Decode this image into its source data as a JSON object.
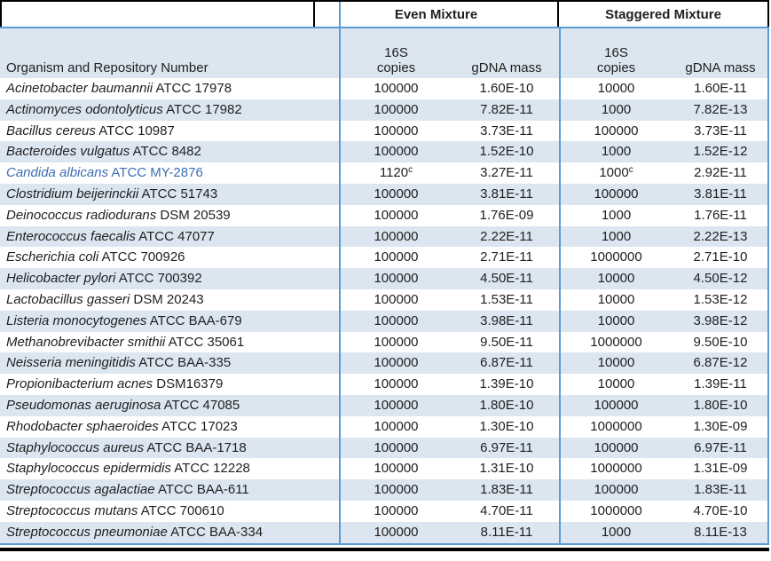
{
  "table": {
    "column_groups": [
      {
        "label": "Even Mixture"
      },
      {
        "label": "Staggered Mixture"
      }
    ],
    "org_header": "Organism and Repository Number",
    "subheaders": {
      "copies_line1": "16S",
      "copies_line2": "copies",
      "mass": "gDNA mass"
    },
    "colors": {
      "stripe": "#dce6f1",
      "blue_line": "#5b9bd5",
      "highlight_text": "#3d6eb5",
      "text": "#1f1f1f",
      "black": "#000000"
    },
    "rows": [
      {
        "organism": "Acinetobacter baumannii",
        "repository": "ATCC 17978",
        "even_copies": "100000",
        "even_copies_sup": "",
        "even_mass": "1.60E-10",
        "stag_copies": "10000",
        "stag_copies_sup": "",
        "stag_mass": "1.60E-11",
        "highlight": false
      },
      {
        "organism": "Actinomyces odontolyticus",
        "repository": "ATCC 17982",
        "even_copies": "100000",
        "even_copies_sup": "",
        "even_mass": "7.82E-11",
        "stag_copies": "1000",
        "stag_copies_sup": "",
        "stag_mass": "7.82E-13",
        "highlight": false
      },
      {
        "organism": "Bacillus cereus",
        "repository": "ATCC 10987",
        "even_copies": "100000",
        "even_copies_sup": "",
        "even_mass": "3.73E-11",
        "stag_copies": "100000",
        "stag_copies_sup": "",
        "stag_mass": "3.73E-11",
        "highlight": false
      },
      {
        "organism": "Bacteroides vulgatus",
        "repository": "ATCC 8482",
        "even_copies": "100000",
        "even_copies_sup": "",
        "even_mass": "1.52E-10",
        "stag_copies": "1000",
        "stag_copies_sup": "",
        "stag_mass": "1.52E-12",
        "highlight": false
      },
      {
        "organism": "Candida albicans",
        "repository": "ATCC MY-2876",
        "even_copies": "1120",
        "even_copies_sup": "c",
        "even_mass": "3.27E-11",
        "stag_copies": "1000",
        "stag_copies_sup": "c",
        "stag_mass": "2.92E-11",
        "highlight": true
      },
      {
        "organism": "Clostridium beijerinckii",
        "repository": "ATCC 51743",
        "even_copies": "100000",
        "even_copies_sup": "",
        "even_mass": "3.81E-11",
        "stag_copies": "100000",
        "stag_copies_sup": "",
        "stag_mass": "3.81E-11",
        "highlight": false
      },
      {
        "organism": "Deinococcus radiodurans",
        "repository": "DSM 20539",
        "even_copies": "100000",
        "even_copies_sup": "",
        "even_mass": "1.76E-09",
        "stag_copies": "1000",
        "stag_copies_sup": "",
        "stag_mass": "1.76E-11",
        "highlight": false
      },
      {
        "organism": "Enterococcus faecalis",
        "repository": "ATCC 47077",
        "even_copies": "100000",
        "even_copies_sup": "",
        "even_mass": "2.22E-11",
        "stag_copies": "1000",
        "stag_copies_sup": "",
        "stag_mass": "2.22E-13",
        "highlight": false
      },
      {
        "organism": "Escherichia coli",
        "repository": "ATCC 700926",
        "even_copies": "100000",
        "even_copies_sup": "",
        "even_mass": "2.71E-11",
        "stag_copies": "1000000",
        "stag_copies_sup": "",
        "stag_mass": "2.71E-10",
        "highlight": false
      },
      {
        "organism": "Helicobacter pylori",
        "repository": "ATCC 700392",
        "even_copies": "100000",
        "even_copies_sup": "",
        "even_mass": "4.50E-11",
        "stag_copies": "10000",
        "stag_copies_sup": "",
        "stag_mass": "4.50E-12",
        "highlight": false
      },
      {
        "organism": "Lactobacillus gasseri",
        "repository": "DSM 20243",
        "even_copies": "100000",
        "even_copies_sup": "",
        "even_mass": "1.53E-11",
        "stag_copies": "10000",
        "stag_copies_sup": "",
        "stag_mass": "1.53E-12",
        "highlight": false
      },
      {
        "organism": "Listeria monocytogenes",
        "repository": "ATCC BAA-679",
        "even_copies": "100000",
        "even_copies_sup": "",
        "even_mass": "3.98E-11",
        "stag_copies": "10000",
        "stag_copies_sup": "",
        "stag_mass": "3.98E-12",
        "highlight": false
      },
      {
        "organism": "Methanobrevibacter smithii",
        "repository": "ATCC 35061",
        "even_copies": "100000",
        "even_copies_sup": "",
        "even_mass": "9.50E-11",
        "stag_copies": "1000000",
        "stag_copies_sup": "",
        "stag_mass": "9.50E-10",
        "highlight": false
      },
      {
        "organism": "Neisseria meningitidis",
        "repository": "ATCC BAA-335",
        "even_copies": "100000",
        "even_copies_sup": "",
        "even_mass": "6.87E-11",
        "stag_copies": "10000",
        "stag_copies_sup": "",
        "stag_mass": "6.87E-12",
        "highlight": false
      },
      {
        "organism": "Propionibacterium acnes",
        "repository": "DSM16379",
        "even_copies": "100000",
        "even_copies_sup": "",
        "even_mass": "1.39E-10",
        "stag_copies": "10000",
        "stag_copies_sup": "",
        "stag_mass": "1.39E-11",
        "highlight": false
      },
      {
        "organism": "Pseudomonas aeruginosa",
        "repository": "ATCC 47085",
        "even_copies": "100000",
        "even_copies_sup": "",
        "even_mass": "1.80E-10",
        "stag_copies": "100000",
        "stag_copies_sup": "",
        "stag_mass": "1.80E-10",
        "highlight": false
      },
      {
        "organism": "Rhodobacter sphaeroides",
        "repository": "ATCC 17023",
        "even_copies": "100000",
        "even_copies_sup": "",
        "even_mass": "1.30E-10",
        "stag_copies": "1000000",
        "stag_copies_sup": "",
        "stag_mass": "1.30E-09",
        "highlight": false
      },
      {
        "organism": "Staphylococcus aureus",
        "repository": "ATCC BAA-1718",
        "even_copies": "100000",
        "even_copies_sup": "",
        "even_mass": "6.97E-11",
        "stag_copies": "100000",
        "stag_copies_sup": "",
        "stag_mass": "6.97E-11",
        "highlight": false
      },
      {
        "organism": "Staphylococcus epidermidis",
        "repository": "ATCC 12228",
        "even_copies": "100000",
        "even_copies_sup": "",
        "even_mass": "1.31E-10",
        "stag_copies": "1000000",
        "stag_copies_sup": "",
        "stag_mass": "1.31E-09",
        "highlight": false
      },
      {
        "organism": "Streptococcus agalactiae",
        "repository": "ATCC BAA-611",
        "even_copies": "100000",
        "even_copies_sup": "",
        "even_mass": "1.83E-11",
        "stag_copies": "100000",
        "stag_copies_sup": "",
        "stag_mass": "1.83E-11",
        "highlight": false
      },
      {
        "organism": "Streptococcus mutans",
        "repository": "ATCC 700610",
        "even_copies": "100000",
        "even_copies_sup": "",
        "even_mass": "4.70E-11",
        "stag_copies": "1000000",
        "stag_copies_sup": "",
        "stag_mass": "4.70E-10",
        "highlight": false
      },
      {
        "organism": "Streptococcus pneumoniae",
        "repository": "ATCC BAA-334",
        "even_copies": "100000",
        "even_copies_sup": "",
        "even_mass": "8.11E-11",
        "stag_copies": "1000",
        "stag_copies_sup": "",
        "stag_mass": "8.11E-13",
        "highlight": false
      }
    ]
  }
}
